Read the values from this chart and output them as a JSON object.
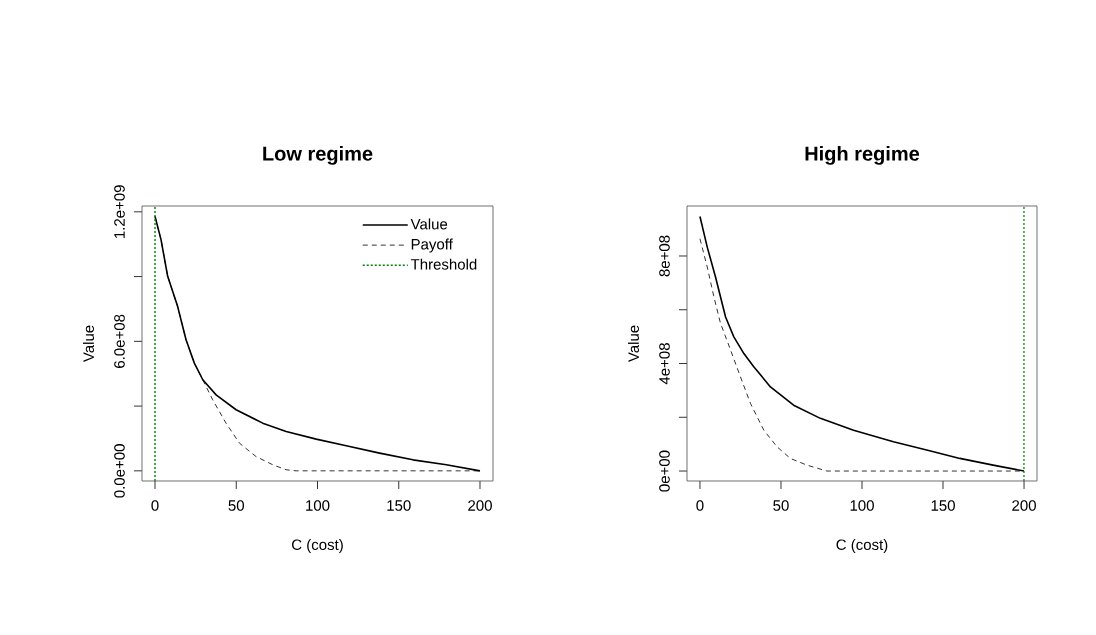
{
  "chart_data": [
    {
      "type": "line",
      "title": "Low regime",
      "xlabel": "C (cost)",
      "ylabel": "Value",
      "xlim": [
        -8,
        208
      ],
      "ylim": [
        -47000000,
        1227000000
      ],
      "xticks": [
        0,
        50,
        100,
        150,
        200
      ],
      "yticks": [
        {
          "value": 0,
          "label": "0.0e+00"
        },
        {
          "value": 300000000,
          "label": null
        },
        {
          "value": 600000000,
          "label": "6.0e+08"
        },
        {
          "value": 900000000,
          "label": null
        },
        {
          "value": 1200000000,
          "label": "1.2e+09"
        }
      ],
      "legend": "top right",
      "series": [
        {
          "name": "Value",
          "color": "#000000",
          "line_style": "solid",
          "x": [
            0,
            3.7,
            7.8,
            13.9,
            19.1,
            24.2,
            29.4,
            37.6,
            49.9,
            66.3,
            80.7,
            99.2,
            117.7,
            138.2,
            158.7,
            179.3,
            200
          ],
          "values": [
            1179000000,
            1071000000,
            901000000,
            762000000,
            607000000,
            499000000,
            422000000,
            352000000,
            283000000,
            221000000,
            182000000,
            147000000,
            116000000,
            82000000,
            51000000,
            28000000,
            0
          ]
        },
        {
          "name": "Payoff",
          "color": "#000000",
          "line_style": "dashed",
          "x": [
            0,
            3.7,
            7.8,
            13.9,
            19.1,
            24.2,
            29.4,
            35.5,
            43.7,
            52,
            62.2,
            72.5,
            80.7,
            86.8,
            200
          ],
          "values": [
            1179000000,
            1071000000,
            901000000,
            762000000,
            607000000,
            499000000,
            422000000,
            329000000,
            221000000,
            128000000,
            66000000,
            28000000,
            5000000,
            0,
            0
          ]
        },
        {
          "name": "Threshold",
          "color": "#008000",
          "line_style": "dotted",
          "x": [
            0,
            0
          ],
          "values": [
            -47000000,
            1227000000
          ]
        }
      ]
    },
    {
      "type": "line",
      "title": "High regime",
      "xlabel": "C (cost)",
      "ylabel": "Value",
      "xlim": [
        -8,
        208
      ],
      "ylim": [
        -37000000,
        986000000
      ],
      "xticks": [
        0,
        50,
        100,
        150,
        200
      ],
      "yticks": [
        {
          "value": 0,
          "label": "0e+00"
        },
        {
          "value": 200000000,
          "label": null
        },
        {
          "value": 400000000,
          "label": "4e+08"
        },
        {
          "value": 600000000,
          "label": null
        },
        {
          "value": 800000000,
          "label": "8e+08"
        }
      ],
      "series": [
        {
          "color": "#000000",
          "line_style": "solid",
          "x": [
            0,
            4.5,
            9.6,
            15.8,
            20.9,
            27.1,
            33.2,
            43.5,
            57.8,
            74.3,
            94.8,
            119.4,
            139.9,
            160.4,
            180.9,
            200
          ],
          "values": [
            947000000,
            833000000,
            722000000,
            573000000,
            499000000,
            437000000,
            388000000,
            313000000,
            245000000,
            196000000,
            152000000,
            109000000,
            78000000,
            47000000,
            22000000,
            0
          ]
        },
        {
          "color": "#000000",
          "line_style": "dashed",
          "x": [
            0,
            4.5,
            8.6,
            12.7,
            18.9,
            25,
            31.2,
            39.4,
            47.6,
            55.8,
            66,
            78.4,
            200
          ],
          "values": [
            864000000,
            759000000,
            648000000,
            549000000,
            450000000,
            350000000,
            251000000,
            152000000,
            90000000,
            47000000,
            22000000,
            0,
            0
          ]
        },
        {
          "color": "#008000",
          "line_style": "dotted",
          "x": [
            200,
            200
          ],
          "values": [
            -37000000,
            986000000
          ]
        }
      ]
    }
  ]
}
